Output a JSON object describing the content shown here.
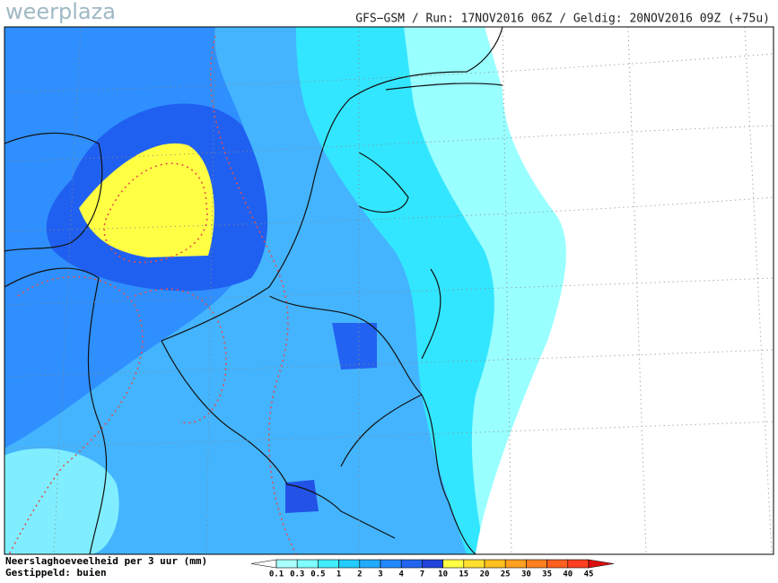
{
  "header": {
    "logo": "weerplaza",
    "run_info": "GFS−GSM / Run: 17NOV2016 06Z / Geldig: 20NOV2016 09Z (+75u)"
  },
  "legend": {
    "title": "Neerslaghoeveelheid per 3 uur (mm)",
    "subtitle": "Gestippeld: buien",
    "labels": [
      "0.1",
      "0.3",
      "0.5",
      "1",
      "2",
      "3",
      "4",
      "7",
      "10",
      "15",
      "20",
      "25",
      "30",
      "35",
      "40",
      "45"
    ],
    "colors": [
      "#ffffff",
      "#aaffff",
      "#80ffff",
      "#40eeff",
      "#22ccff",
      "#22aaff",
      "#2288ff",
      "#2266f0",
      "#2244dd",
      "#ffff44",
      "#ffe030",
      "#ffc020",
      "#ffa020",
      "#ff8020",
      "#ff6020",
      "#ff4020",
      "#dd1010"
    ]
  }
}
